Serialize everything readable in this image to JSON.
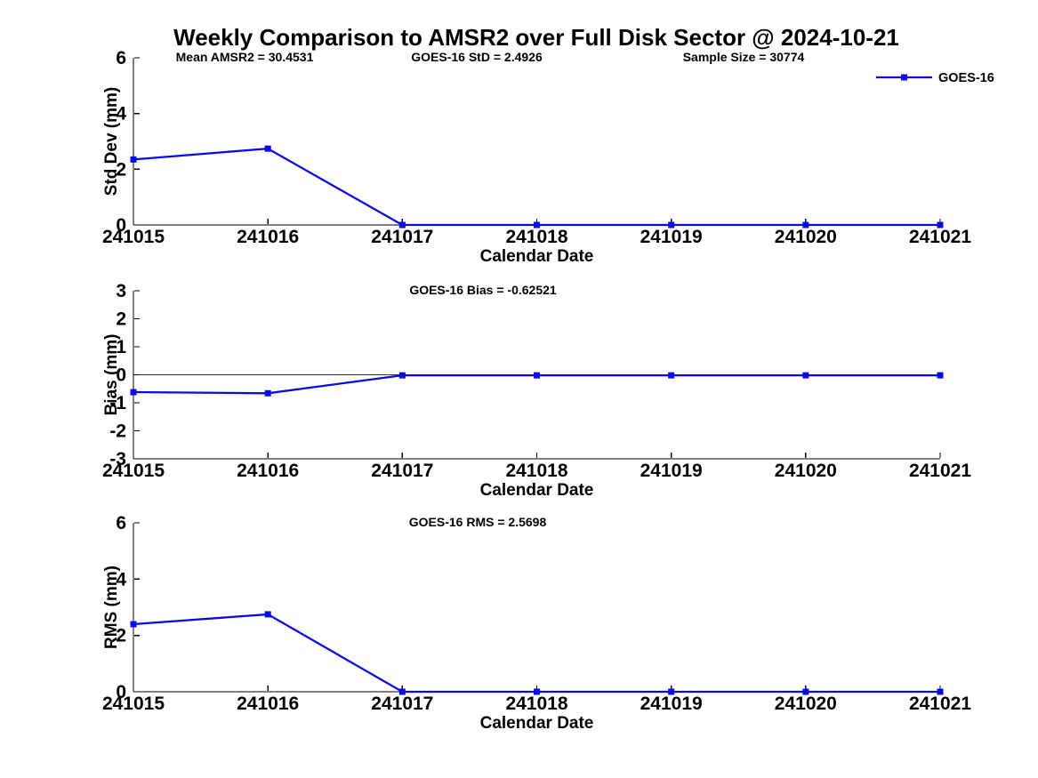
{
  "figure": {
    "title": "Weekly Comparison to AMSR2 over Full Disk Sector @ 2024-10-21",
    "background_color": "#ffffff",
    "text_color": "#000000",
    "accent_line_color": "#0a0ae6",
    "zero_line_color": "#333333"
  },
  "chart_data": [
    {
      "type": "line",
      "categories": [
        "241015",
        "241016",
        "241017",
        "241018",
        "241019",
        "241020",
        "241021"
      ],
      "series": [
        {
          "name": "GOES-16",
          "color": "#0a0ae6",
          "marker": "square",
          "values": [
            2.35,
            2.74,
            0.0,
            0.0,
            0.0,
            0.0,
            0.0
          ]
        }
      ],
      "xlabel": "Calendar Date",
      "ylabel": "Std Dev (mm)",
      "ylim": [
        0,
        6
      ],
      "yticks": [
        0,
        2,
        4,
        6
      ],
      "grid": false,
      "zero_line": false,
      "annotations": [
        "Mean AMSR2 = 30.4531",
        "GOES-16 StD = 2.4926",
        "Sample Size = 30774"
      ],
      "legend": {
        "visible": true,
        "position": "upper-right",
        "entries": [
          "GOES-16"
        ]
      }
    },
    {
      "type": "line",
      "categories": [
        "241015",
        "241016",
        "241017",
        "241018",
        "241019",
        "241020",
        "241021"
      ],
      "series": [
        {
          "name": "GOES-16",
          "color": "#0a0ae6",
          "marker": "square",
          "values": [
            -0.62,
            -0.66,
            -0.02,
            -0.02,
            -0.02,
            -0.02,
            -0.02
          ]
        }
      ],
      "xlabel": "Calendar Date",
      "ylabel": "Bias (mm)",
      "ylim": [
        -3,
        3
      ],
      "yticks": [
        -3,
        -2,
        -1,
        0,
        1,
        2,
        3
      ],
      "grid": false,
      "zero_line": true,
      "annotations": [
        "GOES-16 Bias  = -0.62521"
      ],
      "legend": {
        "visible": false
      }
    },
    {
      "type": "line",
      "categories": [
        "241015",
        "241016",
        "241017",
        "241018",
        "241019",
        "241020",
        "241021"
      ],
      "series": [
        {
          "name": "GOES-16",
          "color": "#0a0ae6",
          "marker": "square",
          "values": [
            2.4,
            2.75,
            0.0,
            0.0,
            0.0,
            0.0,
            0.0
          ]
        }
      ],
      "xlabel": "Calendar Date",
      "ylabel": "RMS (mm)",
      "ylim": [
        0,
        6
      ],
      "yticks": [
        0,
        2,
        4,
        6
      ],
      "grid": false,
      "zero_line": false,
      "annotations": [
        "GOES-16 RMS = 2.5698"
      ],
      "legend": {
        "visible": false
      }
    }
  ]
}
